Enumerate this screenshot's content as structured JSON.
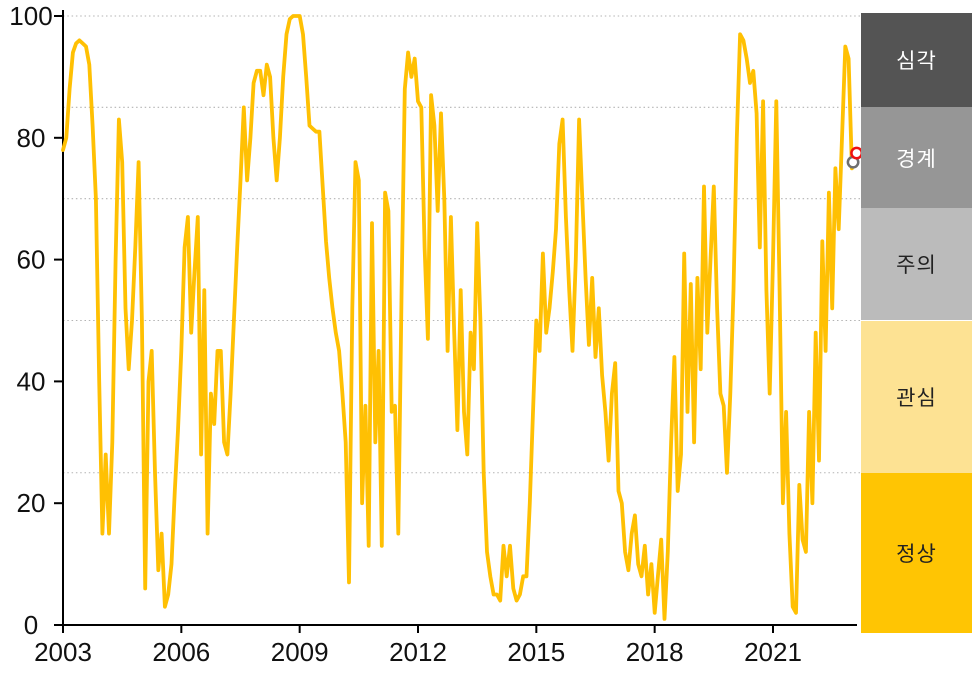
{
  "chart_data": {
    "type": "line",
    "title": "",
    "x_axis": {
      "start_year": 2003,
      "step_months": 1,
      "end_year": 2023,
      "tick_labels": [
        "2003",
        "2006",
        "2009",
        "2012",
        "2015",
        "2018",
        "2021"
      ],
      "tick_years": [
        2003,
        2006,
        2009,
        2012,
        2015,
        2018,
        2021
      ]
    },
    "y_axis": {
      "tick_labels": [
        "0",
        "20",
        "40",
        "60",
        "80",
        "100"
      ],
      "tick_values": [
        0,
        20,
        40,
        60,
        80,
        100
      ],
      "ylim": [
        0,
        100
      ],
      "gridlines_at": [
        25,
        50,
        70,
        85,
        100
      ],
      "grid_style": "dotted"
    },
    "series": [
      {
        "name": "risk-index",
        "color": "#FFC003",
        "monthly_values": [
          78,
          80,
          88,
          94,
          95.5,
          96,
          95.5,
          95,
          92,
          82,
          70,
          40,
          15,
          28,
          15,
          30,
          60,
          83,
          76,
          52,
          42,
          50,
          62,
          76,
          50,
          6,
          40,
          45,
          25,
          9,
          15,
          3,
          5,
          10,
          22,
          32,
          45,
          62,
          67,
          48,
          58,
          67,
          28,
          55,
          15,
          38,
          33,
          45,
          45,
          30,
          28,
          38,
          50,
          62,
          73,
          85,
          73,
          80,
          89,
          91,
          91,
          87,
          92,
          90,
          80,
          73,
          80,
          90,
          97,
          99.5,
          100,
          100,
          100,
          97,
          90,
          82,
          81.5,
          81,
          81,
          72,
          63,
          57,
          52,
          48,
          45,
          38,
          30,
          7,
          52,
          76,
          73,
          20,
          36,
          13,
          66,
          30,
          45,
          13,
          71,
          68,
          35,
          36,
          15,
          55,
          88,
          94,
          90,
          93,
          86,
          85,
          62,
          47,
          87,
          82,
          68,
          84,
          70,
          45,
          67,
          48,
          32,
          55,
          35,
          28,
          48,
          42,
          66,
          50,
          25,
          12,
          8,
          5,
          5,
          4,
          13,
          8,
          13,
          6,
          4,
          5,
          8,
          8,
          20,
          35,
          50,
          45,
          61,
          48,
          52,
          58,
          65,
          79,
          83,
          67,
          55,
          45,
          60,
          83,
          70,
          57,
          46,
          57,
          44,
          52,
          41,
          35,
          27,
          38,
          43,
          22,
          20,
          12,
          9,
          15,
          18,
          10,
          8,
          13,
          5,
          10,
          2,
          8,
          14,
          1,
          12,
          30,
          44,
          22,
          28,
          61,
          35,
          56,
          30,
          57,
          42,
          72,
          48,
          60,
          72,
          52,
          38,
          36,
          25,
          38,
          55,
          80,
          97,
          96,
          93,
          89,
          91,
          84,
          62,
          86,
          55,
          38,
          60,
          86,
          55,
          20,
          35,
          15,
          3,
          2,
          23,
          14,
          12,
          35,
          20,
          48,
          27,
          63,
          45,
          71,
          52,
          75,
          65,
          80,
          95,
          93,
          75
        ]
      }
    ],
    "end_markers": [
      {
        "name": "latest-point-gray",
        "year": 2023.03,
        "value": 76,
        "color": "#6F6F6F"
      },
      {
        "name": "latest-point-red",
        "year": 2023.12,
        "value": 77.5,
        "color": "#EE1111"
      }
    ],
    "risk_bands": [
      {
        "key": "severe",
        "label": "심각",
        "range": [
          85,
          100
        ],
        "color": "#545454",
        "text_color": "#FFFFFF"
      },
      {
        "key": "alert",
        "label": "경계",
        "range": [
          68.5,
          85
        ],
        "color": "#969696",
        "text_color": "#FFFFFF"
      },
      {
        "key": "caution",
        "label": "주의",
        "range": [
          50,
          68.5
        ],
        "color": "#BBBBBB",
        "text_color": "#222222"
      },
      {
        "key": "watch",
        "label": "관심",
        "range": [
          25,
          50
        ],
        "color": "#FDE293",
        "text_color": "#222222"
      },
      {
        "key": "normal",
        "label": "정상",
        "range": [
          0,
          25
        ],
        "color": "#FFC503",
        "text_color": "#222222"
      }
    ],
    "legend_position": "right-band-column",
    "colors": {
      "axis": "#000000",
      "grid": "#B3B3B3",
      "tick_text": "#111111",
      "background": "#FFFFFF"
    }
  }
}
